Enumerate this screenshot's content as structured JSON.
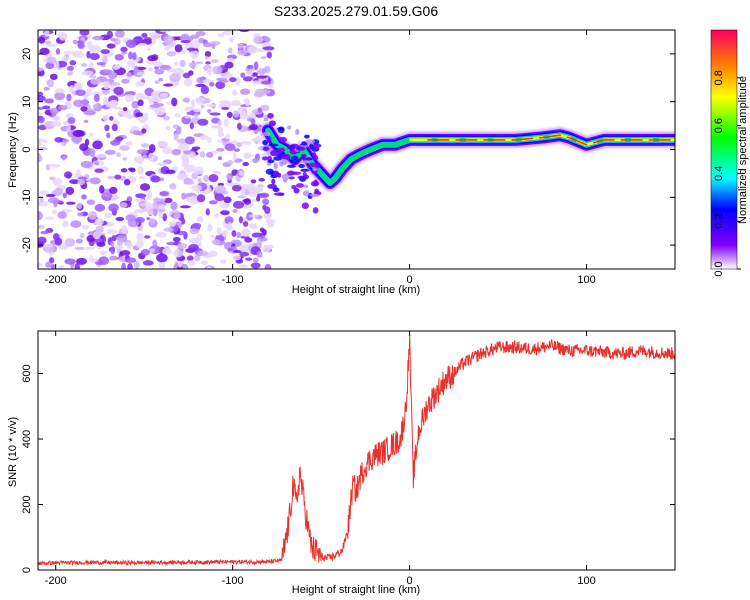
{
  "title": "S233.2025.279.01.59.G06",
  "chart_data": [
    {
      "type": "heatmap",
      "name": "spectrogram",
      "xlabel": "Height of straight line (km)",
      "ylabel": "Frequency (Hz)",
      "xlim": [
        -210,
        150
      ],
      "ylim": [
        -25,
        25
      ],
      "xticks": [
        -200,
        -100,
        0,
        100
      ],
      "yticks": [
        -20,
        -10,
        0,
        10,
        20
      ],
      "xtick_labels": [
        "-200",
        "-100",
        "0",
        "100"
      ],
      "ytick_labels": [
        "-20",
        "-10",
        "0",
        "10",
        "20"
      ],
      "noise_region_x": [
        -210,
        -78
      ],
      "ridge": [
        {
          "x": -80,
          "y": 4
        },
        {
          "x": -75,
          "y": 1
        },
        {
          "x": -70,
          "y": 0
        },
        {
          "x": -65,
          "y": -2
        },
        {
          "x": -60,
          "y": 0
        },
        {
          "x": -55,
          "y": -3
        },
        {
          "x": -50,
          "y": -5
        },
        {
          "x": -45,
          "y": -7
        },
        {
          "x": -42,
          "y": -6
        },
        {
          "x": -38,
          "y": -4
        },
        {
          "x": -33,
          "y": -2
        },
        {
          "x": -28,
          "y": -1
        },
        {
          "x": -22,
          "y": 0
        },
        {
          "x": -15,
          "y": 1
        },
        {
          "x": -8,
          "y": 1
        },
        {
          "x": 0,
          "y": 2
        },
        {
          "x": 10,
          "y": 2
        },
        {
          "x": 20,
          "y": 2
        },
        {
          "x": 40,
          "y": 2
        },
        {
          "x": 60,
          "y": 2
        },
        {
          "x": 75,
          "y": 2.5
        },
        {
          "x": 85,
          "y": 3
        },
        {
          "x": 90,
          "y": 2.5
        },
        {
          "x": 100,
          "y": 1
        },
        {
          "x": 110,
          "y": 2
        },
        {
          "x": 130,
          "y": 2
        },
        {
          "x": 150,
          "y": 2
        }
      ],
      "colorbar": {
        "label": "Normalized spectral amplitude",
        "range": [
          0,
          1
        ],
        "ticks": [
          0.0,
          0.2,
          0.4,
          0.6,
          0.8
        ],
        "tick_labels": [
          "0.0",
          "0.2",
          "0.4",
          "0.6",
          "0.8"
        ]
      }
    },
    {
      "type": "line",
      "name": "snr",
      "xlabel": "Height of straight line (km)",
      "ylabel": "SNR (10 * v/v)",
      "xlim": [
        -210,
        150
      ],
      "ylim": [
        0,
        730
      ],
      "xticks": [
        -200,
        -100,
        0,
        100
      ],
      "yticks": [
        0,
        200,
        400,
        600
      ],
      "xtick_labels": [
        "-200",
        "-100",
        "0",
        "100"
      ],
      "ytick_labels": [
        "0",
        "200",
        "400",
        "600"
      ],
      "color": "#e8312c",
      "series": [
        {
          "name": "SNR",
          "x": [
            -210,
            -200,
            -180,
            -160,
            -140,
            -120,
            -100,
            -80,
            -72,
            -68,
            -66,
            -64,
            -62,
            -60,
            -58,
            -56,
            -54,
            -52,
            -50,
            -46,
            -42,
            -38,
            -35,
            -32,
            -30,
            -28,
            -25,
            -20,
            -15,
            -10,
            -5,
            -2,
            0,
            2,
            5,
            10,
            15,
            20,
            25,
            30,
            40,
            50,
            60,
            70,
            80,
            90,
            100,
            110,
            120,
            130,
            140,
            150
          ],
          "y": [
            20,
            22,
            23,
            22,
            23,
            24,
            25,
            25,
            30,
            150,
            260,
            200,
            300,
            220,
            150,
            80,
            60,
            50,
            40,
            35,
            45,
            60,
            120,
            260,
            240,
            280,
            320,
            350,
            360,
            380,
            400,
            500,
            700,
            280,
            420,
            500,
            540,
            580,
            600,
            630,
            660,
            680,
            680,
            675,
            685,
            670,
            670,
            665,
            660,
            670,
            665,
            660
          ]
        }
      ]
    }
  ]
}
